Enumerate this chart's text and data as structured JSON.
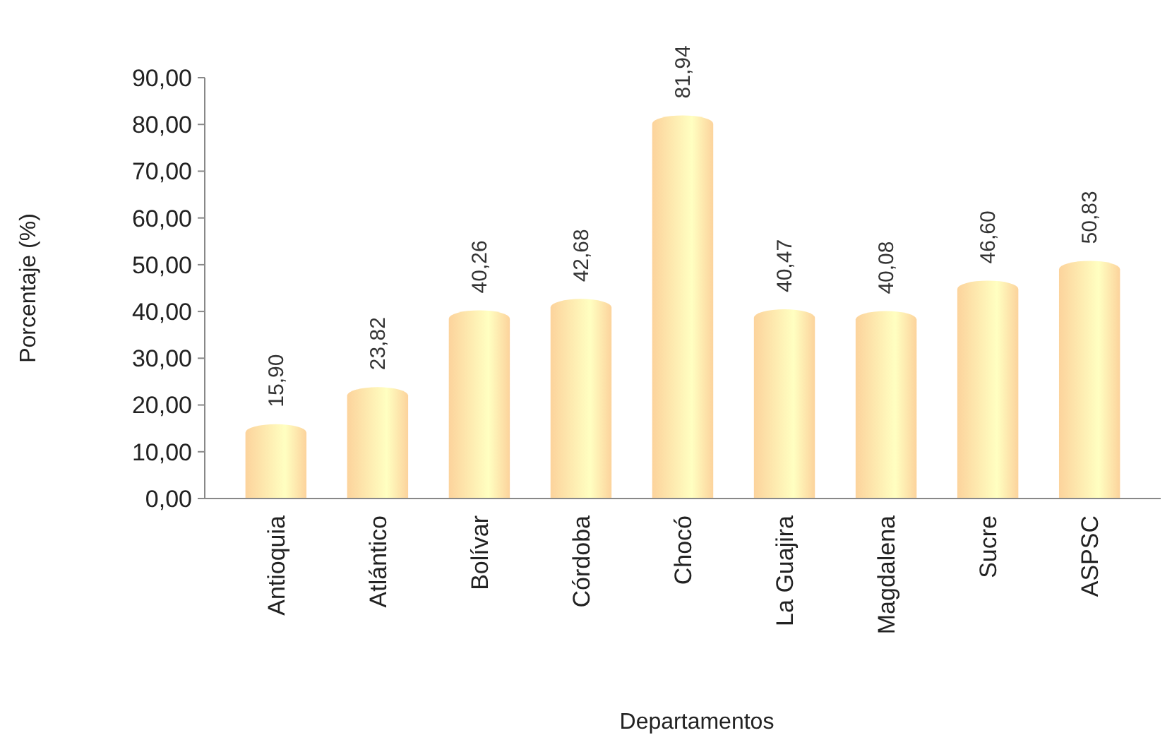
{
  "chart_data": {
    "type": "bar",
    "xlabel": "Departamentos",
    "ylabel": "Porcentaje (%)",
    "categories": [
      "Antioquia",
      "Atlántico",
      "Bolívar",
      "Córdoba",
      "Chocó",
      "La Guajira",
      "Magdalena",
      "Sucre",
      "ASPSC"
    ],
    "values": [
      15.9,
      23.82,
      40.26,
      42.68,
      81.94,
      40.47,
      40.08,
      46.6,
      50.83
    ],
    "value_labels": [
      "15,90",
      "23,82",
      "40,26",
      "42,68",
      "81,94",
      "40,47",
      "40,08",
      "46,60",
      "50,83"
    ],
    "color": "#fcd39c",
    "ylim": [
      0,
      90
    ],
    "yticks": [
      {
        "value": 0,
        "label": "0,00"
      },
      {
        "value": 10,
        "label": "10,00"
      },
      {
        "value": 20,
        "label": "20,00"
      },
      {
        "value": 30,
        "label": "30,00"
      },
      {
        "value": 40,
        "label": "40,00"
      },
      {
        "value": 50,
        "label": "50,00"
      },
      {
        "value": 60,
        "label": "60,00"
      },
      {
        "value": 70,
        "label": "70,00"
      },
      {
        "value": 80,
        "label": "80,00"
      },
      {
        "value": 90,
        "label": "90,00"
      }
    ],
    "grid": false
  }
}
